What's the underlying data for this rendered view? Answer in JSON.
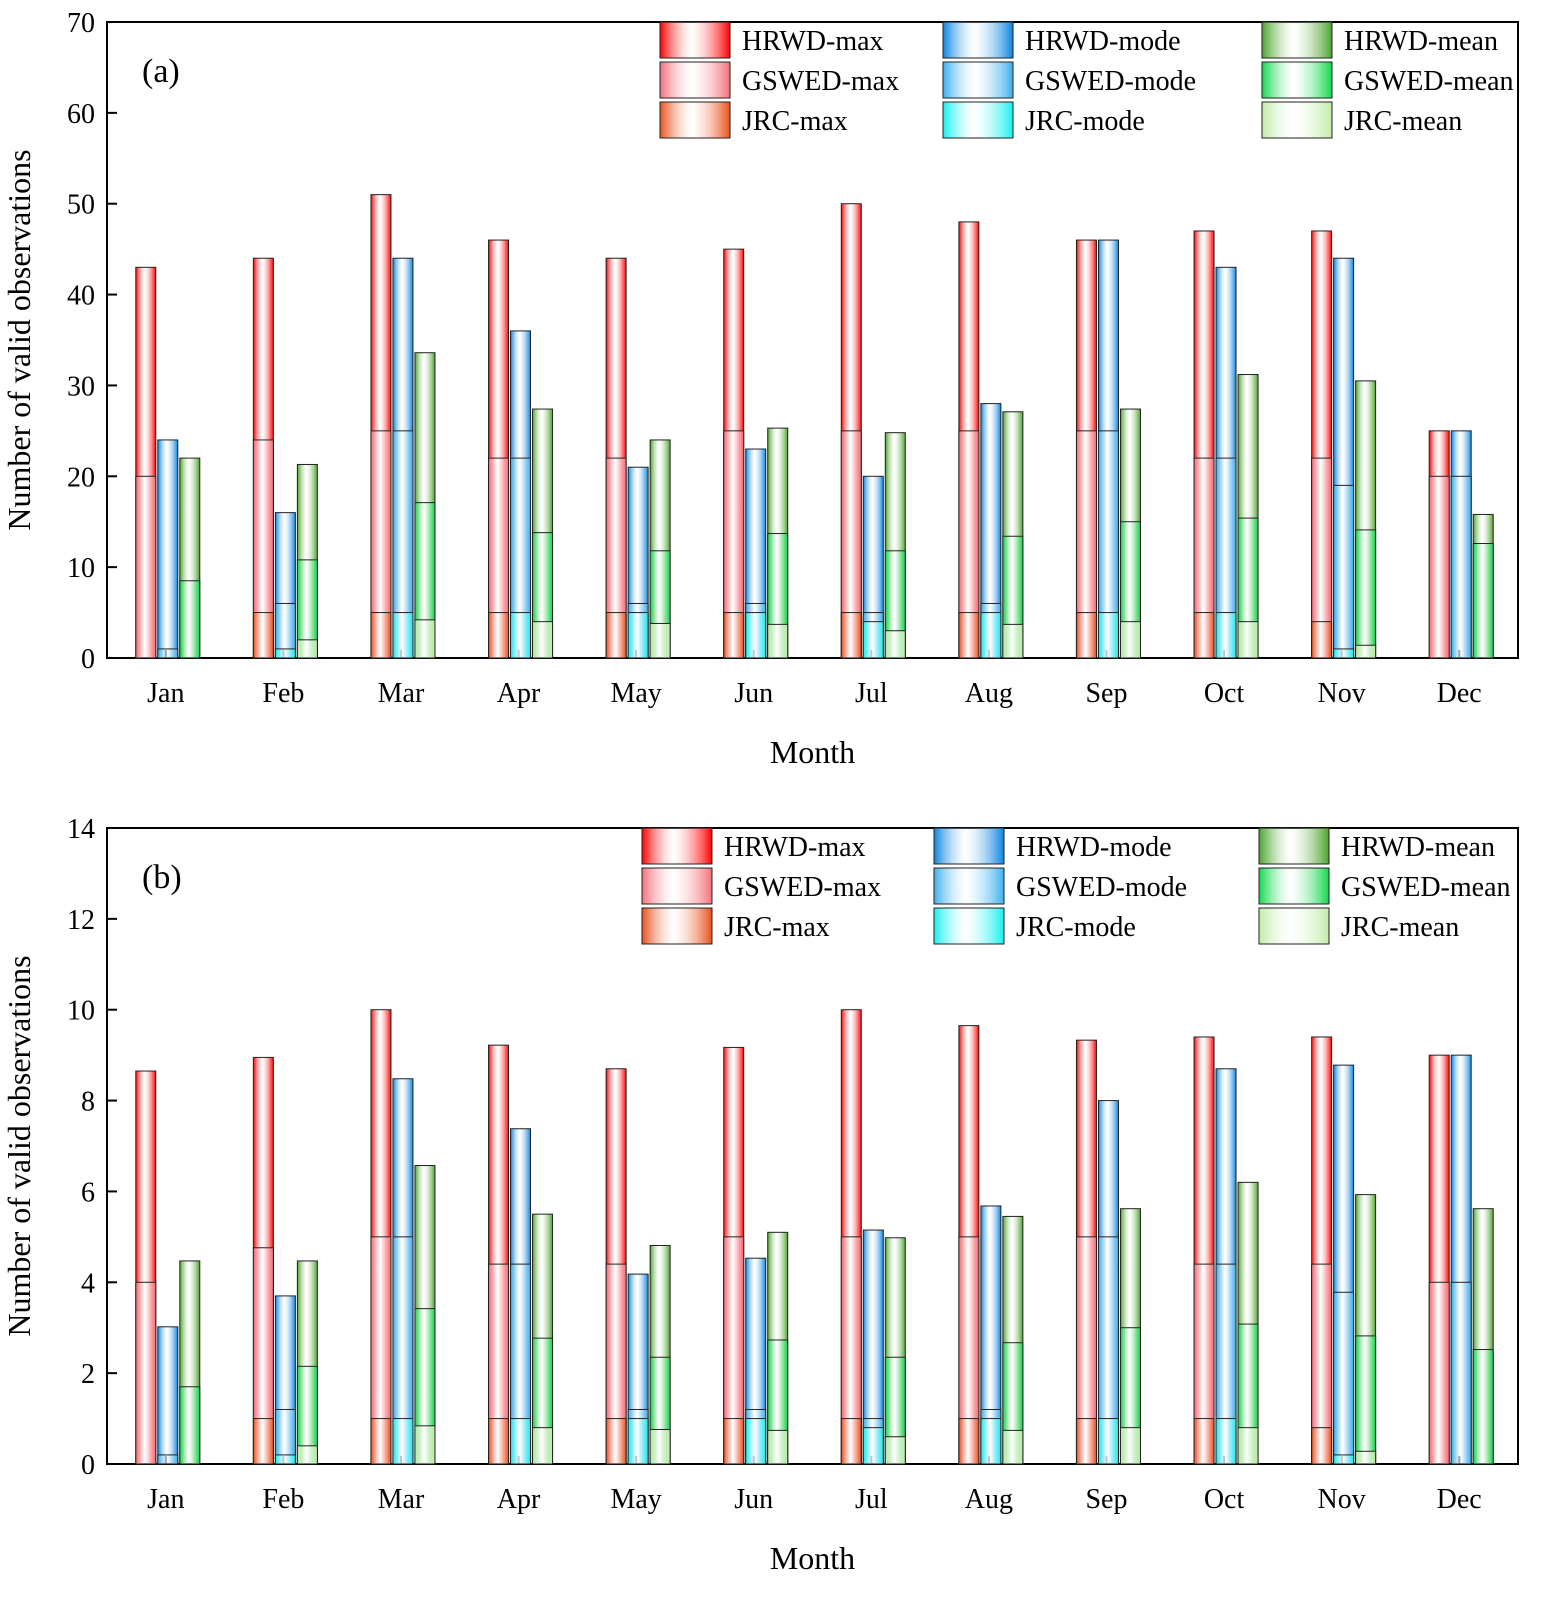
{
  "months": [
    "Jan",
    "Feb",
    "Mar",
    "Apr",
    "May",
    "Jun",
    "Jul",
    "Aug",
    "Sep",
    "Oct",
    "Nov",
    "Dec"
  ],
  "colors": {
    "HRWD-max": "#ff0000",
    "GSWED-max": "#f5707a",
    "JRC-max": "#e8501a",
    "HRWD-mode": "#0a84e0",
    "GSWED-mode": "#3cb0ee",
    "JRC-mode": "#14f0f0",
    "HRWD-mean": "#4aa32a",
    "GSWED-mean": "#10d84a",
    "JRC-mean": "#c2eba6"
  },
  "legend": {
    "col1": [
      "HRWD-max",
      "GSWED-max",
      "JRC-max"
    ],
    "col2": [
      "HRWD-mode",
      "GSWED-mode",
      "JRC-mode"
    ],
    "col3": [
      "HRWD-mean",
      "GSWED-mean",
      "JRC-mean"
    ]
  },
  "chart_data": [
    {
      "type": "bar",
      "panel_label": "(a)",
      "xlabel": "Month",
      "ylabel": "Number of valid observations",
      "ylim": [
        0,
        70
      ],
      "yticks": [
        0,
        10,
        20,
        30,
        40,
        50,
        60,
        70
      ],
      "categories": [
        "Jan",
        "Feb",
        "Mar",
        "Apr",
        "May",
        "Jun",
        "Jul",
        "Aug",
        "Sep",
        "Oct",
        "Nov",
        "Dec"
      ],
      "groups": [
        {
          "name": "max",
          "series": [
            {
              "name": "HRWD-max",
              "values": [
                43,
                44,
                51,
                46,
                44,
                45,
                50,
                48,
                46,
                47,
                47,
                25
              ]
            },
            {
              "name": "GSWED-max",
              "values": [
                20,
                24,
                25,
                22,
                22,
                25,
                25,
                25,
                25,
                22,
                22,
                20
              ]
            },
            {
              "name": "JRC-max",
              "values": [
                0,
                5,
                5,
                5,
                5,
                5,
                5,
                5,
                5,
                5,
                4,
                0
              ]
            }
          ]
        },
        {
          "name": "mode",
          "series": [
            {
              "name": "HRWD-mode",
              "values": [
                24,
                16,
                44,
                36,
                21,
                23,
                20,
                28,
                46,
                43,
                44,
                25
              ]
            },
            {
              "name": "GSWED-mode",
              "values": [
                1,
                6,
                25,
                22,
                6,
                6,
                5,
                6,
                25,
                22,
                19,
                20
              ]
            },
            {
              "name": "JRC-mode",
              "values": [
                0,
                1,
                5,
                5,
                5,
                5,
                4,
                5,
                5,
                5,
                1,
                0
              ]
            }
          ]
        },
        {
          "name": "mean",
          "series": [
            {
              "name": "HRWD-mean",
              "values": [
                22,
                21.3,
                33.6,
                27.4,
                24,
                25.3,
                24.8,
                27.1,
                27.4,
                31.2,
                30.5,
                15.8
              ]
            },
            {
              "name": "GSWED-mean",
              "values": [
                8.5,
                10.8,
                17.1,
                13.8,
                11.8,
                13.7,
                11.8,
                13.4,
                15,
                15.4,
                14.1,
                12.6
              ]
            },
            {
              "name": "JRC-mean",
              "values": [
                0,
                2,
                4.2,
                4,
                3.8,
                3.7,
                3,
                3.7,
                4,
                4,
                1.4,
                0
              ]
            }
          ]
        }
      ]
    },
    {
      "type": "bar",
      "panel_label": "(b)",
      "xlabel": "Month",
      "ylabel": "Number of valid observations",
      "ylim": [
        0,
        14
      ],
      "yticks": [
        0,
        2,
        4,
        6,
        8,
        10,
        12,
        14
      ],
      "categories": [
        "Jan",
        "Feb",
        "Mar",
        "Apr",
        "May",
        "Jun",
        "Jul",
        "Aug",
        "Sep",
        "Oct",
        "Nov",
        "Dec"
      ],
      "groups": [
        {
          "name": "max",
          "series": [
            {
              "name": "HRWD-max",
              "values": [
                8.65,
                8.95,
                10,
                9.22,
                8.7,
                9.17,
                10,
                9.65,
                9.33,
                9.4,
                9.4,
                9
              ]
            },
            {
              "name": "GSWED-max",
              "values": [
                4,
                4.76,
                5,
                4.4,
                4.4,
                5,
                5,
                5,
                5,
                4.4,
                4.4,
                4
              ]
            },
            {
              "name": "JRC-max",
              "values": [
                0,
                1,
                1,
                1,
                1,
                1,
                1,
                1,
                1,
                1,
                0.8,
                0
              ]
            }
          ]
        },
        {
          "name": "mode",
          "series": [
            {
              "name": "HRWD-mode",
              "values": [
                3.02,
                3.7,
                8.48,
                7.38,
                4.18,
                4.53,
                5.15,
                5.68,
                8,
                8.7,
                8.78,
                9
              ]
            },
            {
              "name": "GSWED-mode",
              "values": [
                0.2,
                1.2,
                5,
                4.4,
                1.2,
                1.2,
                1,
                1.2,
                5,
                4.4,
                3.78,
                4
              ]
            },
            {
              "name": "JRC-mode",
              "values": [
                0,
                0.2,
                1,
                1,
                1,
                1,
                0.8,
                1,
                1,
                1,
                0.2,
                0
              ]
            }
          ]
        },
        {
          "name": "mean",
          "series": [
            {
              "name": "HRWD-mean",
              "values": [
                4.47,
                4.47,
                6.57,
                5.5,
                4.81,
                5.1,
                4.98,
                5.45,
                5.62,
                6.2,
                5.93,
                5.62
              ]
            },
            {
              "name": "GSWED-mean",
              "values": [
                1.7,
                2.15,
                3.42,
                2.77,
                2.35,
                2.73,
                2.35,
                2.67,
                3,
                3.08,
                2.82,
                2.52
              ]
            },
            {
              "name": "JRC-mean",
              "values": [
                0,
                0.4,
                0.84,
                0.8,
                0.76,
                0.74,
                0.6,
                0.74,
                0.8,
                0.8,
                0.28,
                0
              ]
            }
          ]
        }
      ]
    }
  ]
}
